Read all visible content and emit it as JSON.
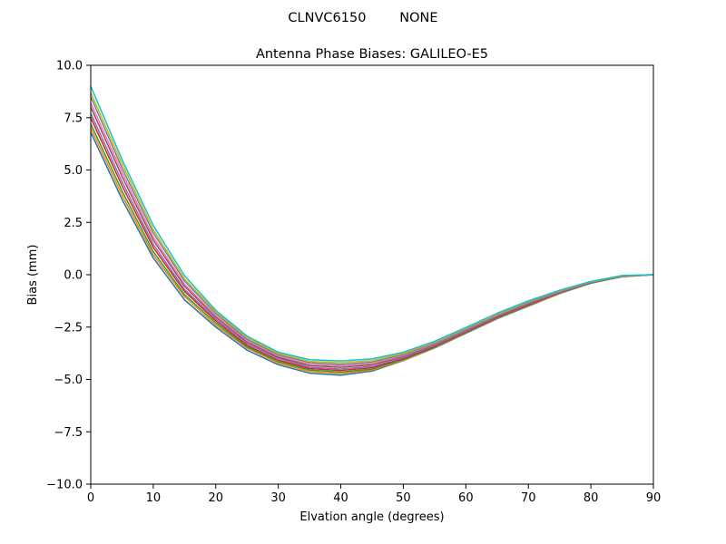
{
  "figure": {
    "suptitle": "CLNVC6150        NONE"
  },
  "chart_data": {
    "type": "line",
    "title": "Antenna Phase Biases: GALILEO-E5",
    "xlabel": "Elvation angle (degrees)",
    "ylabel": "Bias (mm)",
    "xlim": [
      0,
      90
    ],
    "ylim": [
      -10,
      10
    ],
    "xticks": [
      "0",
      "10",
      "20",
      "30",
      "40",
      "50",
      "60",
      "70",
      "80",
      "90"
    ],
    "yticks": [
      "10.0",
      "7.5",
      "5.0",
      "2.5",
      "0.0",
      "−2.5",
      "−5.0",
      "−7.5",
      "−10.0"
    ],
    "grid": false,
    "legend": "none",
    "x": [
      0,
      5,
      10,
      15,
      20,
      25,
      30,
      35,
      40,
      45,
      50,
      55,
      60,
      65,
      70,
      75,
      80,
      85,
      90
    ],
    "series_colors": [
      "#1f77b4",
      "#ff7f0e",
      "#2ca02c",
      "#d62728",
      "#9467bd",
      "#8c564b",
      "#e377c2",
      "#7f7f7f",
      "#bcbd22",
      "#17becf"
    ],
    "series": [
      {
        "values": [
          6.8,
          3.6,
          0.8,
          -1.2,
          -2.5,
          -3.6,
          -4.3,
          -4.7,
          -4.8,
          -4.6,
          -4.1,
          -3.5,
          -2.8,
          -2.1,
          -1.5,
          -0.9,
          -0.4,
          -0.1,
          0.0
        ]
      },
      {
        "values": [
          7.0,
          3.8,
          0.95,
          -1.05,
          -2.4,
          -3.5,
          -4.22,
          -4.62,
          -4.72,
          -4.55,
          -4.08,
          -3.48,
          -2.78,
          -2.08,
          -1.48,
          -0.9,
          -0.4,
          -0.1,
          0.0
        ]
      },
      {
        "values": [
          7.2,
          4.0,
          1.1,
          -0.95,
          -2.3,
          -3.45,
          -4.15,
          -4.55,
          -4.65,
          -4.5,
          -4.05,
          -3.46,
          -2.76,
          -2.06,
          -1.46,
          -0.88,
          -0.4,
          -0.08,
          0.0
        ]
      },
      {
        "values": [
          7.5,
          4.25,
          1.3,
          -0.8,
          -2.2,
          -3.38,
          -4.08,
          -4.48,
          -4.57,
          -4.44,
          -4.0,
          -3.42,
          -2.73,
          -2.03,
          -1.43,
          -0.86,
          -0.38,
          -0.07,
          0.0
        ]
      },
      {
        "values": [
          7.7,
          4.45,
          1.45,
          -0.7,
          -2.12,
          -3.3,
          -4.0,
          -4.42,
          -4.5,
          -4.38,
          -3.96,
          -3.38,
          -2.7,
          -2.0,
          -1.4,
          -0.85,
          -0.37,
          -0.07,
          0.0
        ]
      },
      {
        "values": [
          8.0,
          4.7,
          1.65,
          -0.55,
          -2.02,
          -3.22,
          -3.94,
          -4.34,
          -4.42,
          -4.3,
          -3.9,
          -3.33,
          -2.66,
          -1.97,
          -1.37,
          -0.82,
          -0.36,
          -0.06,
          0.0
        ]
      },
      {
        "values": [
          8.2,
          4.9,
          1.8,
          -0.45,
          -1.95,
          -3.15,
          -3.88,
          -4.28,
          -4.35,
          -4.24,
          -3.86,
          -3.3,
          -2.63,
          -1.94,
          -1.34,
          -0.8,
          -0.35,
          -0.06,
          0.0
        ]
      },
      {
        "values": [
          8.5,
          5.1,
          2.0,
          -0.3,
          -1.85,
          -3.08,
          -3.82,
          -4.2,
          -4.28,
          -4.17,
          -3.81,
          -3.26,
          -2.6,
          -1.91,
          -1.31,
          -0.78,
          -0.34,
          -0.05,
          0.0
        ]
      },
      {
        "values": [
          8.7,
          5.3,
          2.15,
          -0.2,
          -1.78,
          -3.0,
          -3.76,
          -4.14,
          -4.2,
          -4.1,
          -3.76,
          -3.22,
          -2.56,
          -1.88,
          -1.28,
          -0.76,
          -0.33,
          -0.05,
          0.0
        ]
      },
      {
        "values": [
          9.0,
          5.5,
          2.35,
          -0.05,
          -1.7,
          -2.93,
          -3.7,
          -4.06,
          -4.12,
          -4.02,
          -3.7,
          -3.18,
          -2.52,
          -1.84,
          -1.25,
          -0.74,
          -0.32,
          -0.04,
          0.0
        ]
      }
    ]
  }
}
